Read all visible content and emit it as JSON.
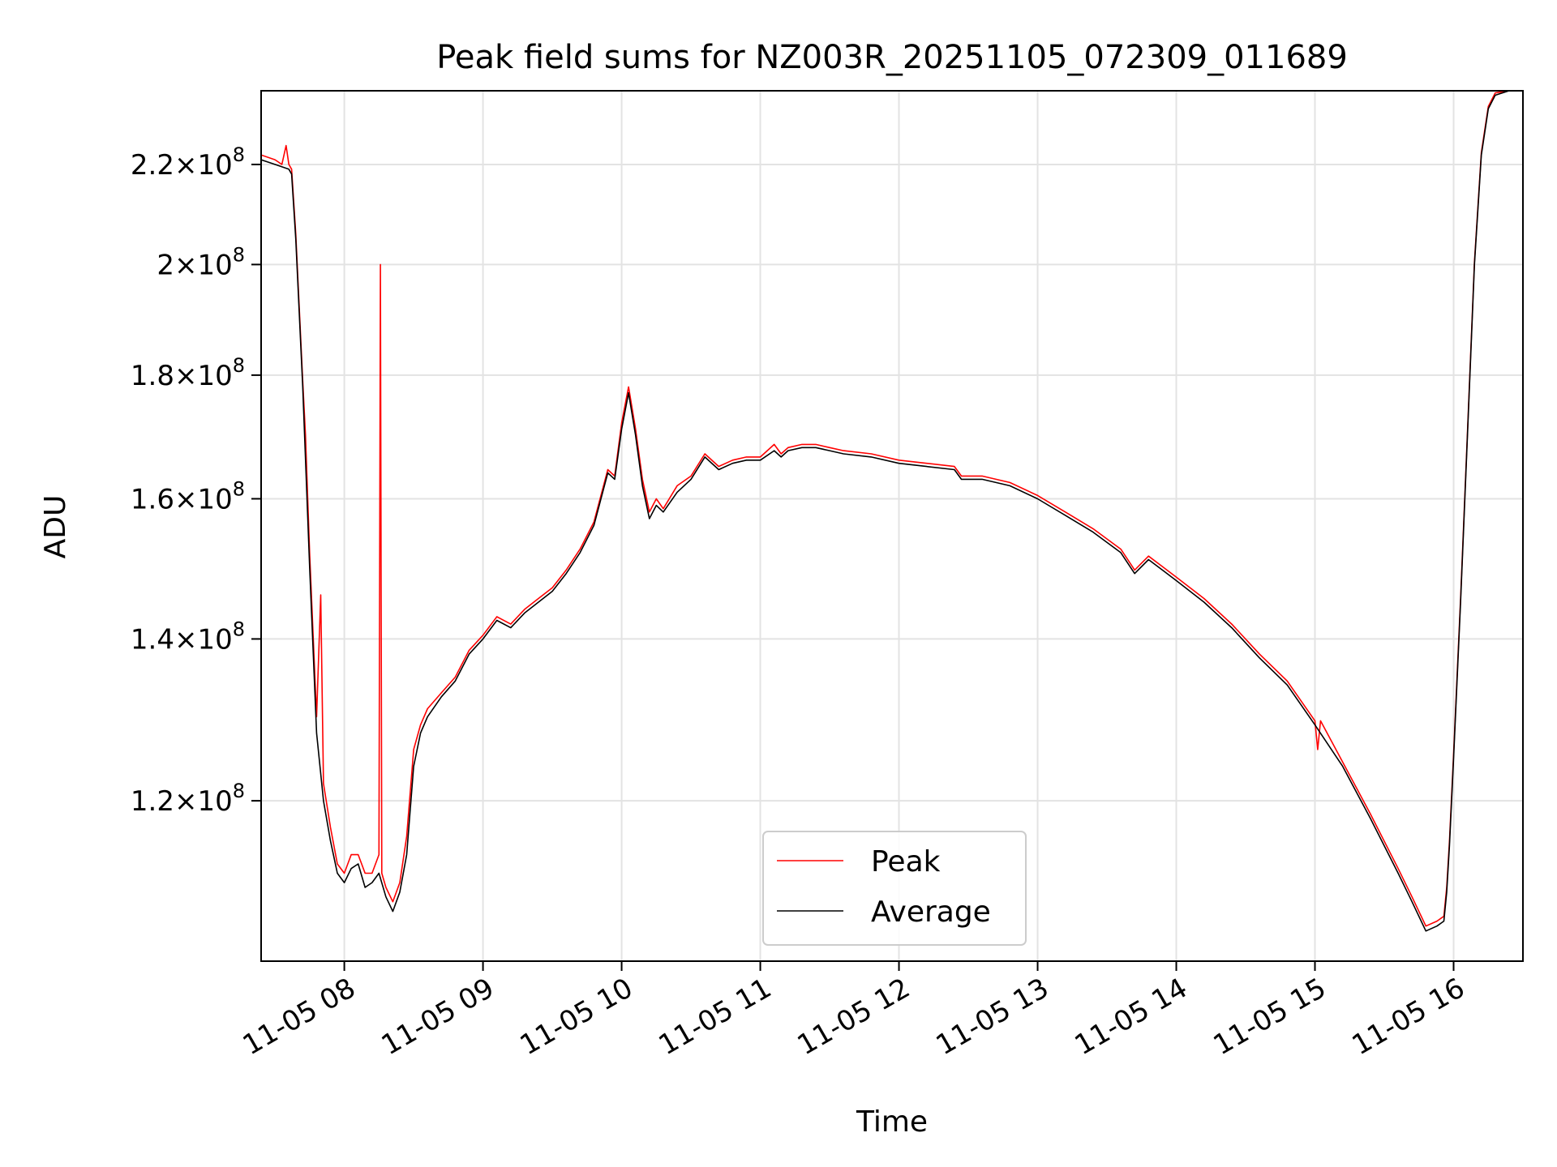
{
  "chart_data": {
    "type": "line",
    "title": "Peak field sums for NZ003R_20251105_072309_011689",
    "xlabel": "Time",
    "ylabel": "ADU",
    "yscale": "log",
    "grid": true,
    "xlim_hours": [
      7.4,
      16.5
    ],
    "ylim": [
      103000000,
      236000000
    ],
    "x_ticks": [
      {
        "value": 8,
        "label": "11-05 08"
      },
      {
        "value": 9,
        "label": "11-05 09"
      },
      {
        "value": 10,
        "label": "11-05 10"
      },
      {
        "value": 11,
        "label": "11-05 11"
      },
      {
        "value": 12,
        "label": "11-05 12"
      },
      {
        "value": 13,
        "label": "11-05 13"
      },
      {
        "value": 14,
        "label": "11-05 14"
      },
      {
        "value": 15,
        "label": "11-05 15"
      },
      {
        "value": 16,
        "label": "11-05 16"
      }
    ],
    "y_ticks": [
      {
        "value": 120000000,
        "mantissa": "1.2",
        "base": "10",
        "exp": "8"
      },
      {
        "value": 140000000,
        "mantissa": "1.4",
        "base": "10",
        "exp": "8"
      },
      {
        "value": 160000000,
        "mantissa": "1.6",
        "base": "10",
        "exp": "8"
      },
      {
        "value": 180000000,
        "mantissa": "1.8",
        "base": "10",
        "exp": "8"
      },
      {
        "value": 200000000,
        "mantissa": "2",
        "base": "10",
        "exp": "8"
      },
      {
        "value": 220000000,
        "mantissa": "2.2",
        "base": "10",
        "exp": "8"
      }
    ],
    "legend_position": "lower-center",
    "series": [
      {
        "name": "Average",
        "color": "#000000",
        "x_hours": [
          7.4,
          7.5,
          7.6,
          7.62,
          7.65,
          7.7,
          7.75,
          7.8,
          7.85,
          7.9,
          7.95,
          8.0,
          8.05,
          8.1,
          8.15,
          8.2,
          8.25,
          8.3,
          8.35,
          8.4,
          8.45,
          8.5,
          8.55,
          8.6,
          8.7,
          8.8,
          8.9,
          9.0,
          9.1,
          9.2,
          9.3,
          9.4,
          9.5,
          9.6,
          9.7,
          9.8,
          9.9,
          9.95,
          10.0,
          10.05,
          10.1,
          10.15,
          10.2,
          10.25,
          10.3,
          10.4,
          10.5,
          10.6,
          10.7,
          10.8,
          10.9,
          11.0,
          11.1,
          11.15,
          11.2,
          11.3,
          11.4,
          11.5,
          11.6,
          11.8,
          12.0,
          12.2,
          12.4,
          12.45,
          12.6,
          12.8,
          13.0,
          13.2,
          13.4,
          13.6,
          13.7,
          13.8,
          13.9,
          14.0,
          14.2,
          14.4,
          14.6,
          14.8,
          15.0,
          15.2,
          15.4,
          15.6,
          15.7,
          15.8,
          15.88,
          15.93,
          15.95,
          15.97,
          16.0,
          16.05,
          16.1,
          16.15,
          16.2,
          16.25,
          16.3,
          16.4,
          16.5
        ],
        "values": [
          221000000,
          220000000,
          219000000,
          218000000,
          205000000,
          178000000,
          150000000,
          128000000,
          120000000,
          115500000,
          112000000,
          111000000,
          112500000,
          113000000,
          110500000,
          111000000,
          112000000,
          109500000,
          108000000,
          110000000,
          114000000,
          124000000,
          128000000,
          130000000,
          132500000,
          134500000,
          138000000,
          140000000,
          142500000,
          141500000,
          143500000,
          145000000,
          146500000,
          149000000,
          152000000,
          156000000,
          164000000,
          163000000,
          171000000,
          177000000,
          170000000,
          162000000,
          157000000,
          159000000,
          158000000,
          161000000,
          163000000,
          166500000,
          164500000,
          165500000,
          166000000,
          166000000,
          167500000,
          166500000,
          167500000,
          168000000,
          168000000,
          167500000,
          167000000,
          166500000,
          165500000,
          165000000,
          164500000,
          163000000,
          163000000,
          162000000,
          160000000,
          157500000,
          155000000,
          152000000,
          149000000,
          151000000,
          149500000,
          148000000,
          145000000,
          141500000,
          137500000,
          134000000,
          129000000,
          124000000,
          118000000,
          112000000,
          109000000,
          106000000,
          106500000,
          107000000,
          110000000,
          115000000,
          125000000,
          145000000,
          170000000,
          200000000,
          222000000,
          232000000,
          235000000,
          236000000,
          236000000
        ]
      },
      {
        "name": "Peak",
        "color": "#ff0000",
        "x_hours": [
          7.4,
          7.5,
          7.55,
          7.58,
          7.6,
          7.62,
          7.65,
          7.7,
          7.72,
          7.75,
          7.8,
          7.83,
          7.85,
          7.9,
          7.95,
          8.0,
          8.05,
          8.1,
          8.15,
          8.2,
          8.25,
          8.26,
          8.27,
          8.3,
          8.35,
          8.4,
          8.45,
          8.5,
          8.55,
          8.6,
          8.7,
          8.8,
          8.9,
          9.0,
          9.1,
          9.2,
          9.3,
          9.4,
          9.5,
          9.6,
          9.7,
          9.8,
          9.9,
          9.95,
          10.0,
          10.05,
          10.1,
          10.15,
          10.2,
          10.25,
          10.3,
          10.4,
          10.5,
          10.6,
          10.7,
          10.8,
          10.9,
          11.0,
          11.1,
          11.15,
          11.2,
          11.3,
          11.4,
          11.5,
          11.6,
          11.8,
          12.0,
          12.2,
          12.4,
          12.45,
          12.6,
          12.8,
          13.0,
          13.2,
          13.4,
          13.6,
          13.7,
          13.8,
          13.9,
          14.0,
          14.2,
          14.4,
          14.6,
          14.8,
          15.0,
          15.02,
          15.04,
          15.2,
          15.4,
          15.6,
          15.7,
          15.8,
          15.88,
          15.93,
          15.95,
          15.97,
          16.0,
          16.05,
          16.1,
          16.15,
          16.2,
          16.25,
          16.3,
          16.4,
          16.5
        ],
        "values": [
          222000000,
          221000000,
          220000000,
          224000000,
          220000000,
          219000000,
          206000000,
          179000000,
          170000000,
          152000000,
          130000000,
          146000000,
          122000000,
          117000000,
          113000000,
          112000000,
          114000000,
          114000000,
          112000000,
          112000000,
          114000000,
          200000000,
          112000000,
          110500000,
          109000000,
          111000000,
          116000000,
          126000000,
          129000000,
          131000000,
          133000000,
          135000000,
          138500000,
          140500000,
          143000000,
          142000000,
          144000000,
          145500000,
          147000000,
          149500000,
          152500000,
          156500000,
          164500000,
          163500000,
          172000000,
          178000000,
          171000000,
          163000000,
          158000000,
          160000000,
          158500000,
          162000000,
          163500000,
          167000000,
          165000000,
          166000000,
          166500000,
          166500000,
          168500000,
          167000000,
          168000000,
          168500000,
          168500000,
          168000000,
          167500000,
          167000000,
          166000000,
          165500000,
          165000000,
          163500000,
          163500000,
          162500000,
          160500000,
          158000000,
          155500000,
          152500000,
          149500000,
          151500000,
          150000000,
          148500000,
          145500000,
          142000000,
          138000000,
          134500000,
          129500000,
          126000000,
          129500000,
          124500000,
          118500000,
          112500000,
          109500000,
          106500000,
          107000000,
          107500000,
          110500000,
          115500000,
          125500000,
          145500000,
          170500000,
          200500000,
          222500000,
          232500000,
          235500000,
          236000000,
          236000000
        ]
      }
    ]
  }
}
